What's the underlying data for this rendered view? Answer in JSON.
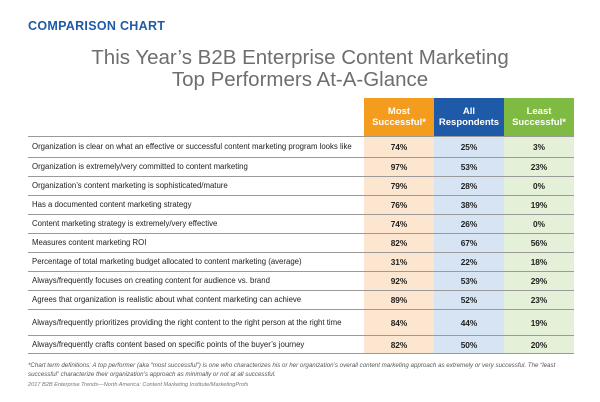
{
  "label": "COMPARISON CHART",
  "title_line1": "This Year’s B2B Enterprise Content Marketing",
  "title_line2": "Top Performers At-A-Glance",
  "chart_data": {
    "type": "table",
    "columns": [
      {
        "name": "Most Successful*",
        "color": "#f39c1e"
      },
      {
        "name": "All Respondents",
        "color": "#1f5aa8"
      },
      {
        "name": "Least Successful*",
        "color": "#7fbb42"
      }
    ],
    "rows": [
      {
        "label": "Organization is clear on what an effective or successful content marketing program looks like",
        "values": [
          "74%",
          "25%",
          "3%"
        ]
      },
      {
        "label": "Organization is extremely/very committed to content marketing",
        "values": [
          "97%",
          "53%",
          "23%"
        ]
      },
      {
        "label": "Organization’s content marketing is sophisticated/mature",
        "values": [
          "79%",
          "28%",
          "0%"
        ]
      },
      {
        "label": "Has a documented content marketing strategy",
        "values": [
          "76%",
          "38%",
          "19%"
        ]
      },
      {
        "label": "Content marketing strategy is extremely/very effective",
        "values": [
          "74%",
          "26%",
          "0%"
        ]
      },
      {
        "label": "Measures content marketing ROI",
        "values": [
          "82%",
          "67%",
          "56%"
        ]
      },
      {
        "label": "Percentage of total marketing budget allocated to content marketing (average)",
        "values": [
          "31%",
          "22%",
          "18%"
        ]
      },
      {
        "label": "Always/frequently focuses on creating content for audience vs. brand",
        "values": [
          "92%",
          "53%",
          "29%"
        ]
      },
      {
        "label": "Agrees that organization is realistic about what content marketing can achieve",
        "values": [
          "89%",
          "52%",
          "23%"
        ]
      },
      {
        "label": "Always/frequently prioritizes providing the right content to the right person at the right time",
        "values": [
          "84%",
          "44%",
          "19%"
        ]
      },
      {
        "label": "Always/frequently crafts content based on specific points of the buyer’s journey",
        "values": [
          "82%",
          "50%",
          "20%"
        ]
      }
    ]
  },
  "footnote": "*Chart term definitions: A top performer (aka “most successful”) is one who characterizes his or her organization’s overall content marketing approach as extremely or very successful. The “least successful” characterize their organization’s approach as minimally or not at all successful.",
  "source": "2017 B2B Enterprise Trends—North America: Content Marketing Institute/MarketingProfs"
}
